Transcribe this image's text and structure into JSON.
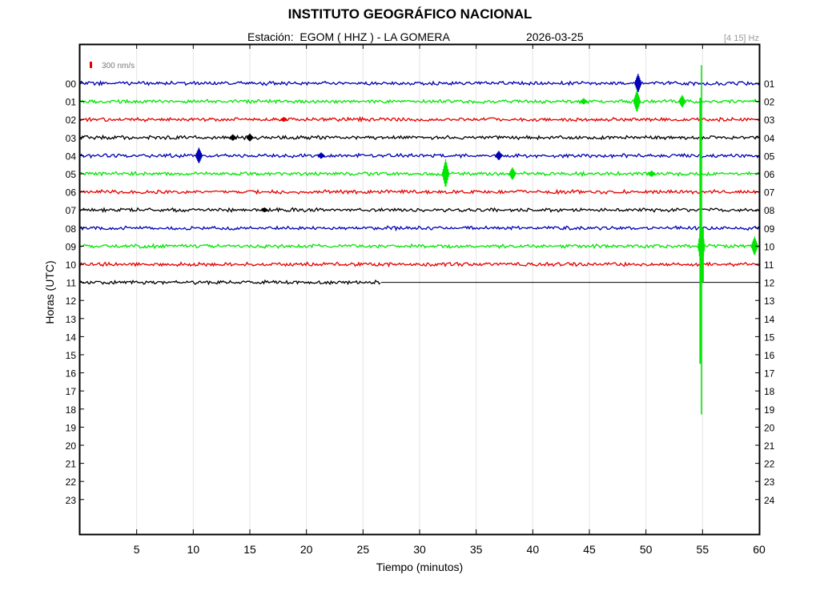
{
  "header": {
    "title": "INSTITUTO GEOGRÁFICO NACIONAL",
    "station": "Estación:  EGOM ( HHZ ) - LA GOMERA",
    "date": "2026-03-25",
    "filter": "[4 15] Hz"
  },
  "chart_data": {
    "type": "line",
    "title": "INSTITUTO GEOGRÁFICO NACIONAL",
    "xlabel": "Tiempo (minutos)",
    "ylabel": "Horas (UTC)",
    "xlim": [
      0,
      60
    ],
    "x_ticks": [
      "5",
      "10",
      "15",
      "20",
      "25",
      "30",
      "35",
      "40",
      "45",
      "50",
      "55",
      "60"
    ],
    "left_ticks": [
      "00",
      "01",
      "02",
      "03",
      "04",
      "05",
      "06",
      "07",
      "08",
      "09",
      "10",
      "11",
      "12",
      "13",
      "14",
      "15",
      "16",
      "17",
      "18",
      "19",
      "20",
      "21",
      "22",
      "23"
    ],
    "right_ticks": [
      "01",
      "02",
      "03",
      "04",
      "05",
      "06",
      "07",
      "08",
      "09",
      "10",
      "11",
      "12",
      "13",
      "14",
      "15",
      "16",
      "17",
      "18",
      "19",
      "20",
      "21",
      "22",
      "23",
      "24"
    ],
    "grid": "vertical",
    "scale_label": "300 nm/s",
    "trace_colors": [
      "#0000b4",
      "#00e600",
      "#e60000",
      "#000000"
    ],
    "traces": [
      {
        "hour": 0,
        "end_minute": 60,
        "events": [
          {
            "t": 49.3,
            "amp": 12
          }
        ]
      },
      {
        "hour": 1,
        "end_minute": 60,
        "events": [
          {
            "t": 49.2,
            "amp": 14
          },
          {
            "t": 53.2,
            "amp": 8
          },
          {
            "t": 44.5,
            "amp": 4
          }
        ]
      },
      {
        "hour": 2,
        "end_minute": 60,
        "events": [
          {
            "t": 18.0,
            "amp": 3
          }
        ]
      },
      {
        "hour": 3,
        "end_minute": 60,
        "events": [
          {
            "t": 13.5,
            "amp": 4
          },
          {
            "t": 15.0,
            "amp": 5
          }
        ]
      },
      {
        "hour": 4,
        "end_minute": 60,
        "events": [
          {
            "t": 10.5,
            "amp": 10
          },
          {
            "t": 21.3,
            "amp": 4
          },
          {
            "t": 37.0,
            "amp": 6
          }
        ]
      },
      {
        "hour": 5,
        "end_minute": 60,
        "events": [
          {
            "t": 32.3,
            "amp": 18
          },
          {
            "t": 38.2,
            "amp": 8
          },
          {
            "t": 50.5,
            "amp": 4
          }
        ]
      },
      {
        "hour": 6,
        "end_minute": 60,
        "events": []
      },
      {
        "hour": 7,
        "end_minute": 60,
        "events": [
          {
            "t": 16.3,
            "amp": 3
          }
        ]
      },
      {
        "hour": 8,
        "end_minute": 60,
        "events": []
      },
      {
        "hour": 9,
        "end_minute": 60,
        "events": [
          {
            "t": 54.9,
            "amp": 28
          },
          {
            "t": 59.6,
            "amp": 12
          }
        ]
      },
      {
        "hour": 10,
        "end_minute": 60,
        "events": []
      },
      {
        "hour": 11,
        "end_minute": 26.6,
        "events": []
      }
    ],
    "main_event": {
      "minute": 54.9,
      "from_hour": -1,
      "to_hour": 18.3
    }
  }
}
